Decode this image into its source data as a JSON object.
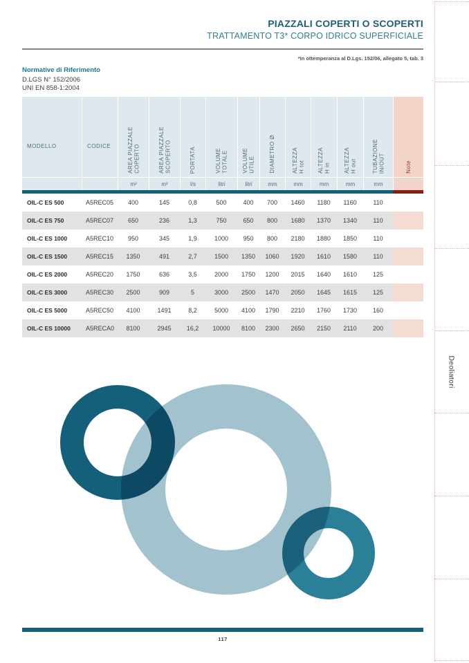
{
  "header": {
    "title": "PIAZZALI COPERTI O SCOPERTI",
    "subtitle": "TRATTAMENTO T3* CORPO IDRICO SUPERFICIALE",
    "compliance_note": "*In ottemperanza al D.Lgs. 152/06, allegato 5, tab. 3"
  },
  "normative": {
    "heading": "Normative di Riferimento",
    "items": [
      "D.LGS N° 152/2006",
      "UNI EN 858-1:2004"
    ]
  },
  "table": {
    "columns": [
      {
        "id": "modello",
        "label": "MODELLO",
        "unit": "",
        "orientation": "horizontal"
      },
      {
        "id": "codice",
        "label": "CODICE",
        "unit": "",
        "orientation": "horizontal"
      },
      {
        "id": "area-piazzale-coperto",
        "label": "AREA PIAZZALE\nCOPERTO",
        "unit": "m²",
        "orientation": "vertical"
      },
      {
        "id": "area-piazzale-scoperto",
        "label": "AREA PIAZZALE\nSCOPERTO",
        "unit": "m²",
        "orientation": "vertical"
      },
      {
        "id": "portata",
        "label": "PORTATA",
        "unit": "l/s",
        "orientation": "vertical"
      },
      {
        "id": "volume-totale",
        "label": "VOLUME\nTOTALE",
        "unit": "litri",
        "orientation": "vertical"
      },
      {
        "id": "volume-utile",
        "label": "VOLUME\nUTILE",
        "unit": "litri",
        "orientation": "vertical"
      },
      {
        "id": "diametro",
        "label": "DIAMETRO Ø",
        "unit": "mm",
        "orientation": "vertical"
      },
      {
        "id": "altezza-h-tot",
        "label": "ALTEZZA\nH tot",
        "unit": "mm",
        "orientation": "vertical"
      },
      {
        "id": "altezza-h-in",
        "label": "ALTEZZA\nH in",
        "unit": "mm",
        "orientation": "vertical"
      },
      {
        "id": "altezza-h-out",
        "label": "ALTEZZA\nH out",
        "unit": "mm",
        "orientation": "vertical"
      },
      {
        "id": "tubazione-in-out",
        "label": "TUBAZIONE\nIN/OUT",
        "unit": "mm",
        "orientation": "vertical"
      },
      {
        "id": "note",
        "label": "Note",
        "unit": "",
        "orientation": "vertical",
        "highlight": true
      }
    ],
    "rows": [
      [
        "OIL-C ES 500",
        "A5REC05",
        "400",
        "145",
        "0,8",
        "500",
        "400",
        "700",
        "1460",
        "1180",
        "1160",
        "110",
        ""
      ],
      [
        "OIL-C ES 750",
        "A5REC07",
        "650",
        "236",
        "1,3",
        "750",
        "650",
        "800",
        "1680",
        "1370",
        "1340",
        "110",
        ""
      ],
      [
        "OIL-C ES 1000",
        "A5REC10",
        "950",
        "345",
        "1,9",
        "1000",
        "950",
        "800",
        "2180",
        "1880",
        "1850",
        "110",
        ""
      ],
      [
        "OIL-C ES 1500",
        "A5REC15",
        "1350",
        "491",
        "2,7",
        "1500",
        "1350",
        "1060",
        "1920",
        "1610",
        "1580",
        "110",
        ""
      ],
      [
        "OIL-C ES 2000",
        "A5REC20",
        "1750",
        "636",
        "3,5",
        "2000",
        "1750",
        "1200",
        "2015",
        "1640",
        "1610",
        "125",
        ""
      ],
      [
        "OIL-C ES 3000",
        "A5REC30",
        "2500",
        "909",
        "5",
        "3000",
        "2500",
        "1470",
        "2050",
        "1645",
        "1615",
        "125",
        ""
      ],
      [
        "OIL-C ES 5000",
        "A5REC50",
        "4100",
        "1491",
        "8,2",
        "5000",
        "4100",
        "1790",
        "2210",
        "1760",
        "1730",
        "160",
        ""
      ],
      [
        "OIL-C ES 10000",
        "A5RECA0",
        "8100",
        "2945",
        "16,2",
        "10000",
        "8100",
        "2300",
        "2650",
        "2150",
        "2110",
        "200",
        ""
      ]
    ]
  },
  "graphic": {
    "rings": [
      {
        "name": "ring-dark-teal",
        "color": "#14607a"
      },
      {
        "name": "ring-light-blue",
        "color": "#a2c2cd"
      },
      {
        "name": "ring-medium-teal",
        "color": "#2b8099"
      }
    ]
  },
  "sidebar": {
    "label": "Deoliatori"
  },
  "footer": {
    "page_number": "117"
  },
  "colors": {
    "accent_teal_dark": "#136179",
    "title_teal": "#1b5f7a",
    "subtitle_teal": "#2e7f97",
    "header_cell_bg": "#dfe9ed",
    "note_header_bg": "#f3d4c9",
    "note_cell_bg": "#f5dcd3",
    "note_text": "#9e2f1f",
    "note_divider_red": "#8e1c12",
    "row_alt_bg": "#e2e2e2",
    "rail_dotted_pink": "#e2aeb0"
  }
}
